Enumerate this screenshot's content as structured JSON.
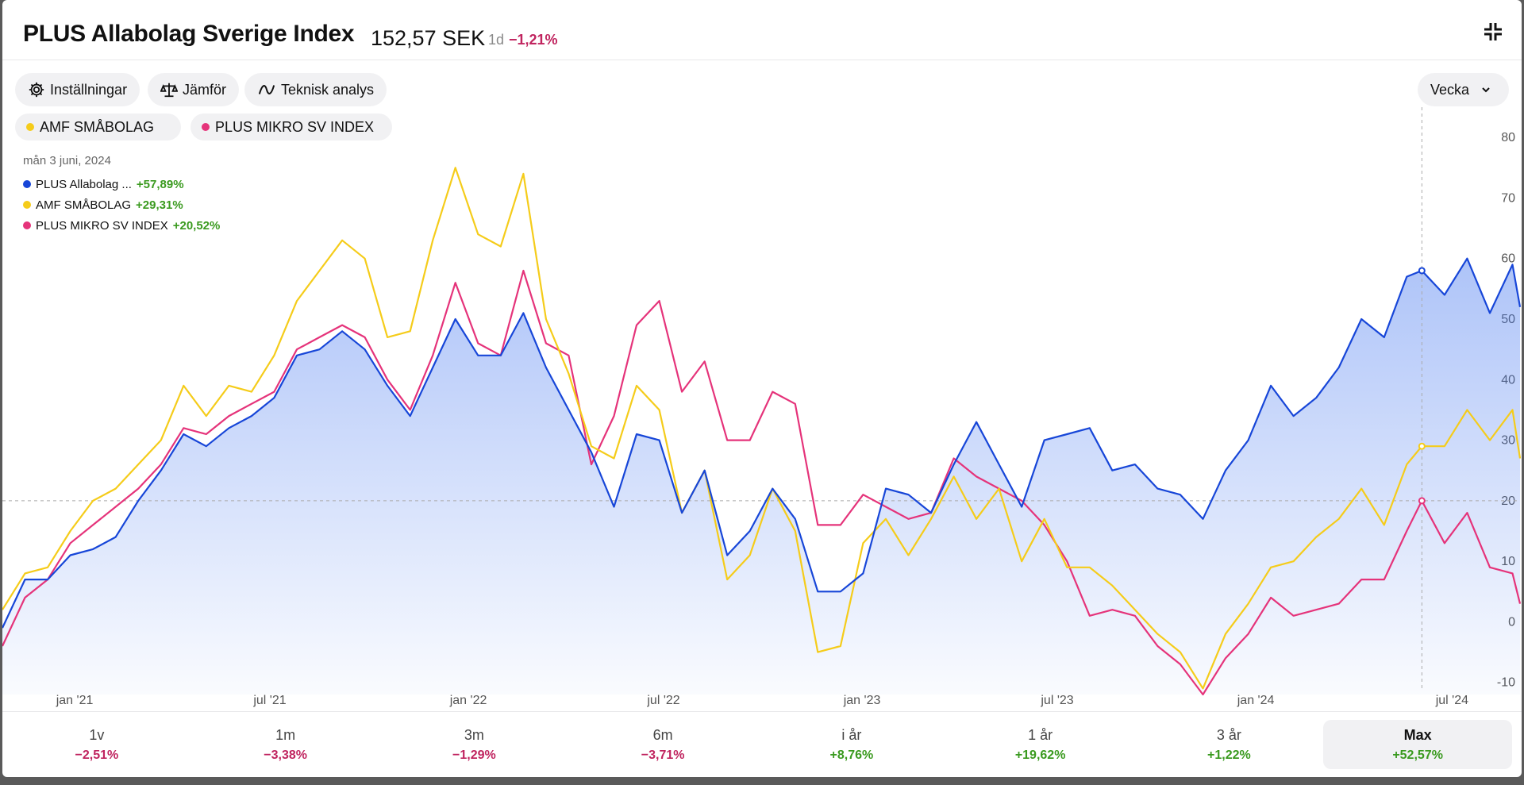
{
  "header": {
    "title": "PLUS Allabolag Sverige Index",
    "price": "152,57 SEK",
    "change_period": "1d",
    "change_value": "−1,21%",
    "collapse_icon": "collapse-icon"
  },
  "toolbar": {
    "settings_label": "Inställningar",
    "compare_label": "Jämför",
    "technical_label": "Teknisk analys",
    "interval_label": "Vecka"
  },
  "compare_chips": [
    {
      "label": "AMF SMÅBOLAG",
      "color": "#f5cc1a"
    },
    {
      "label": "PLUS MIKRO SV INDEX",
      "color": "#e5337a"
    }
  ],
  "tooltip": {
    "date": "mån 3 juni, 2024",
    "rows": [
      {
        "name": "PLUS Allabolag ...",
        "value": "+57,89%",
        "color": "#1746d8"
      },
      {
        "name": "AMF SMÅBOLAG",
        "value": "+29,31%",
        "color": "#f5cc1a"
      },
      {
        "name": "PLUS MIKRO SV INDEX",
        "value": "+20,52%",
        "color": "#e5337a"
      }
    ]
  },
  "periods": [
    {
      "label": "1v",
      "value": "−2,51%",
      "sign": "neg"
    },
    {
      "label": "1m",
      "value": "−3,38%",
      "sign": "neg"
    },
    {
      "label": "3m",
      "value": "−1,29%",
      "sign": "neg"
    },
    {
      "label": "6m",
      "value": "−3,71%",
      "sign": "neg"
    },
    {
      "label": "i år",
      "value": "+8,76%",
      "sign": "pos"
    },
    {
      "label": "1 år",
      "value": "+19,62%",
      "sign": "pos"
    },
    {
      "label": "3 år",
      "value": "+1,22%",
      "sign": "pos"
    },
    {
      "label": "Max",
      "value": "+52,57%",
      "sign": "pos",
      "active": true
    }
  ],
  "chart_data": {
    "type": "line",
    "x_tick_labels": [
      "jan '21",
      "jul '21",
      "jan '22",
      "jul '22",
      "jan '23",
      "jul '23",
      "jan '24",
      "jul '24"
    ],
    "x_tick_dates": [
      "2021-01-01",
      "2021-07-01",
      "2022-01-01",
      "2022-07-01",
      "2023-01-01",
      "2023-07-01",
      "2024-01-01",
      "2024-07-01"
    ],
    "x_range": [
      "2020-10-26",
      "2024-09-02"
    ],
    "y_ticks": [
      -10,
      0,
      10,
      20,
      30,
      40,
      50,
      60,
      70,
      80
    ],
    "ylim": [
      -12,
      85
    ],
    "y_axis_side": "right",
    "crosshair_date": "2024-06-03",
    "series": [
      {
        "name": "PLUS Allabolag Sverige Index",
        "color": "#1746d8",
        "filled": true,
        "points": [
          [
            "2020-10-26",
            -1
          ],
          [
            "2020-11-16",
            7
          ],
          [
            "2020-12-07",
            7
          ],
          [
            "2020-12-28",
            11
          ],
          [
            "2021-01-18",
            12
          ],
          [
            "2021-02-08",
            14
          ],
          [
            "2021-03-01",
            20
          ],
          [
            "2021-03-22",
            25
          ],
          [
            "2021-04-12",
            31
          ],
          [
            "2021-05-03",
            29
          ],
          [
            "2021-05-24",
            32
          ],
          [
            "2021-06-14",
            34
          ],
          [
            "2021-07-05",
            37
          ],
          [
            "2021-07-26",
            44
          ],
          [
            "2021-08-16",
            45
          ],
          [
            "2021-09-06",
            48
          ],
          [
            "2021-09-27",
            45
          ],
          [
            "2021-10-18",
            39
          ],
          [
            "2021-11-08",
            34
          ],
          [
            "2021-11-29",
            42
          ],
          [
            "2021-12-20",
            50
          ],
          [
            "2022-01-10",
            44
          ],
          [
            "2022-01-31",
            44
          ],
          [
            "2022-02-21",
            51
          ],
          [
            "2022-03-14",
            42
          ],
          [
            "2022-04-04",
            35
          ],
          [
            "2022-04-25",
            28
          ],
          [
            "2022-05-16",
            19
          ],
          [
            "2022-06-06",
            31
          ],
          [
            "2022-06-27",
            30
          ],
          [
            "2022-07-18",
            18
          ],
          [
            "2022-08-08",
            25
          ],
          [
            "2022-08-29",
            11
          ],
          [
            "2022-09-19",
            15
          ],
          [
            "2022-10-10",
            22
          ],
          [
            "2022-10-31",
            17
          ],
          [
            "2022-11-21",
            5
          ],
          [
            "2022-12-12",
            5
          ],
          [
            "2023-01-02",
            8
          ],
          [
            "2023-01-23",
            22
          ],
          [
            "2023-02-13",
            21
          ],
          [
            "2023-03-06",
            18
          ],
          [
            "2023-03-27",
            26
          ],
          [
            "2023-04-17",
            33
          ],
          [
            "2023-05-08",
            26
          ],
          [
            "2023-05-29",
            19
          ],
          [
            "2023-06-19",
            30
          ],
          [
            "2023-07-10",
            31
          ],
          [
            "2023-07-31",
            32
          ],
          [
            "2023-08-21",
            25
          ],
          [
            "2023-09-11",
            26
          ],
          [
            "2023-10-02",
            22
          ],
          [
            "2023-10-23",
            21
          ],
          [
            "2023-11-13",
            17
          ],
          [
            "2023-12-04",
            25
          ],
          [
            "2023-12-25",
            30
          ],
          [
            "2024-01-15",
            39
          ],
          [
            "2024-02-05",
            34
          ],
          [
            "2024-02-26",
            37
          ],
          [
            "2024-03-18",
            42
          ],
          [
            "2024-04-08",
            50
          ],
          [
            "2024-04-29",
            47
          ],
          [
            "2024-05-20",
            57
          ],
          [
            "2024-06-03",
            58
          ],
          [
            "2024-06-24",
            54
          ],
          [
            "2024-07-15",
            60
          ],
          [
            "2024-08-05",
            51
          ],
          [
            "2024-08-26",
            59
          ],
          [
            "2024-09-02",
            52
          ]
        ]
      },
      {
        "name": "AMF SMÅBOLAG",
        "color": "#f5cc1a",
        "filled": false,
        "points": [
          [
            "2020-10-26",
            2
          ],
          [
            "2020-11-16",
            8
          ],
          [
            "2020-12-07",
            9
          ],
          [
            "2020-12-28",
            15
          ],
          [
            "2021-01-18",
            20
          ],
          [
            "2021-02-08",
            22
          ],
          [
            "2021-03-01",
            26
          ],
          [
            "2021-03-22",
            30
          ],
          [
            "2021-04-12",
            39
          ],
          [
            "2021-05-03",
            34
          ],
          [
            "2021-05-24",
            39
          ],
          [
            "2021-06-14",
            38
          ],
          [
            "2021-07-05",
            44
          ],
          [
            "2021-07-26",
            53
          ],
          [
            "2021-08-16",
            58
          ],
          [
            "2021-09-06",
            63
          ],
          [
            "2021-09-27",
            60
          ],
          [
            "2021-10-18",
            47
          ],
          [
            "2021-11-08",
            48
          ],
          [
            "2021-11-29",
            63
          ],
          [
            "2021-12-20",
            75
          ],
          [
            "2022-01-10",
            64
          ],
          [
            "2022-01-31",
            62
          ],
          [
            "2022-02-21",
            74
          ],
          [
            "2022-03-14",
            50
          ],
          [
            "2022-04-04",
            41
          ],
          [
            "2022-04-25",
            29
          ],
          [
            "2022-05-16",
            27
          ],
          [
            "2022-06-06",
            39
          ],
          [
            "2022-06-27",
            35
          ],
          [
            "2022-07-18",
            18
          ],
          [
            "2022-08-08",
            25
          ],
          [
            "2022-08-29",
            7
          ],
          [
            "2022-09-19",
            11
          ],
          [
            "2022-10-10",
            22
          ],
          [
            "2022-10-31",
            15
          ],
          [
            "2022-11-21",
            -5
          ],
          [
            "2022-12-12",
            -4
          ],
          [
            "2023-01-02",
            13
          ],
          [
            "2023-01-23",
            17
          ],
          [
            "2023-02-13",
            11
          ],
          [
            "2023-03-06",
            17
          ],
          [
            "2023-03-27",
            24
          ],
          [
            "2023-04-17",
            17
          ],
          [
            "2023-05-08",
            22
          ],
          [
            "2023-05-29",
            10
          ],
          [
            "2023-06-19",
            17
          ],
          [
            "2023-07-10",
            9
          ],
          [
            "2023-07-31",
            9
          ],
          [
            "2023-08-21",
            6
          ],
          [
            "2023-09-11",
            2
          ],
          [
            "2023-10-02",
            -2
          ],
          [
            "2023-10-23",
            -5
          ],
          [
            "2023-11-13",
            -11
          ],
          [
            "2023-12-04",
            -2
          ],
          [
            "2023-12-25",
            3
          ],
          [
            "2024-01-15",
            9
          ],
          [
            "2024-02-05",
            10
          ],
          [
            "2024-02-26",
            14
          ],
          [
            "2024-03-18",
            17
          ],
          [
            "2024-04-08",
            22
          ],
          [
            "2024-04-29",
            16
          ],
          [
            "2024-05-20",
            26
          ],
          [
            "2024-06-03",
            29
          ],
          [
            "2024-06-24",
            29
          ],
          [
            "2024-07-15",
            35
          ],
          [
            "2024-08-05",
            30
          ],
          [
            "2024-08-26",
            35
          ],
          [
            "2024-09-02",
            27
          ]
        ]
      },
      {
        "name": "PLUS MIKRO SV INDEX",
        "color": "#e5337a",
        "filled": false,
        "points": [
          [
            "2020-10-26",
            -4
          ],
          [
            "2020-11-16",
            4
          ],
          [
            "2020-12-07",
            7
          ],
          [
            "2020-12-28",
            13
          ],
          [
            "2021-01-18",
            16
          ],
          [
            "2021-02-08",
            19
          ],
          [
            "2021-03-01",
            22
          ],
          [
            "2021-03-22",
            26
          ],
          [
            "2021-04-12",
            32
          ],
          [
            "2021-05-03",
            31
          ],
          [
            "2021-05-24",
            34
          ],
          [
            "2021-06-14",
            36
          ],
          [
            "2021-07-05",
            38
          ],
          [
            "2021-07-26",
            45
          ],
          [
            "2021-08-16",
            47
          ],
          [
            "2021-09-06",
            49
          ],
          [
            "2021-09-27",
            47
          ],
          [
            "2021-10-18",
            40
          ],
          [
            "2021-11-08",
            35
          ],
          [
            "2021-11-29",
            44
          ],
          [
            "2021-12-20",
            56
          ],
          [
            "2022-01-10",
            46
          ],
          [
            "2022-01-31",
            44
          ],
          [
            "2022-02-21",
            58
          ],
          [
            "2022-03-14",
            46
          ],
          [
            "2022-04-04",
            44
          ],
          [
            "2022-04-25",
            26
          ],
          [
            "2022-05-16",
            34
          ],
          [
            "2022-06-06",
            49
          ],
          [
            "2022-06-27",
            53
          ],
          [
            "2022-07-18",
            38
          ],
          [
            "2022-08-08",
            43
          ],
          [
            "2022-08-29",
            30
          ],
          [
            "2022-09-19",
            30
          ],
          [
            "2022-10-10",
            38
          ],
          [
            "2022-10-31",
            36
          ],
          [
            "2022-11-21",
            16
          ],
          [
            "2022-12-12",
            16
          ],
          [
            "2023-01-02",
            21
          ],
          [
            "2023-01-23",
            19
          ],
          [
            "2023-02-13",
            17
          ],
          [
            "2023-03-06",
            18
          ],
          [
            "2023-03-27",
            27
          ],
          [
            "2023-04-17",
            24
          ],
          [
            "2023-05-08",
            22
          ],
          [
            "2023-05-29",
            20
          ],
          [
            "2023-06-19",
            16
          ],
          [
            "2023-07-10",
            10
          ],
          [
            "2023-07-31",
            1
          ],
          [
            "2023-08-21",
            2
          ],
          [
            "2023-09-11",
            1
          ],
          [
            "2023-10-02",
            -4
          ],
          [
            "2023-10-23",
            -7
          ],
          [
            "2023-11-13",
            -12
          ],
          [
            "2023-12-04",
            -6
          ],
          [
            "2023-12-25",
            -2
          ],
          [
            "2024-01-15",
            4
          ],
          [
            "2024-02-05",
            1
          ],
          [
            "2024-02-26",
            2
          ],
          [
            "2024-03-18",
            3
          ],
          [
            "2024-04-08",
            7
          ],
          [
            "2024-04-29",
            7
          ],
          [
            "2024-05-20",
            15
          ],
          [
            "2024-06-03",
            20
          ],
          [
            "2024-06-24",
            13
          ],
          [
            "2024-07-15",
            18
          ],
          [
            "2024-08-05",
            9
          ],
          [
            "2024-08-26",
            8
          ],
          [
            "2024-09-02",
            3
          ]
        ]
      }
    ]
  }
}
